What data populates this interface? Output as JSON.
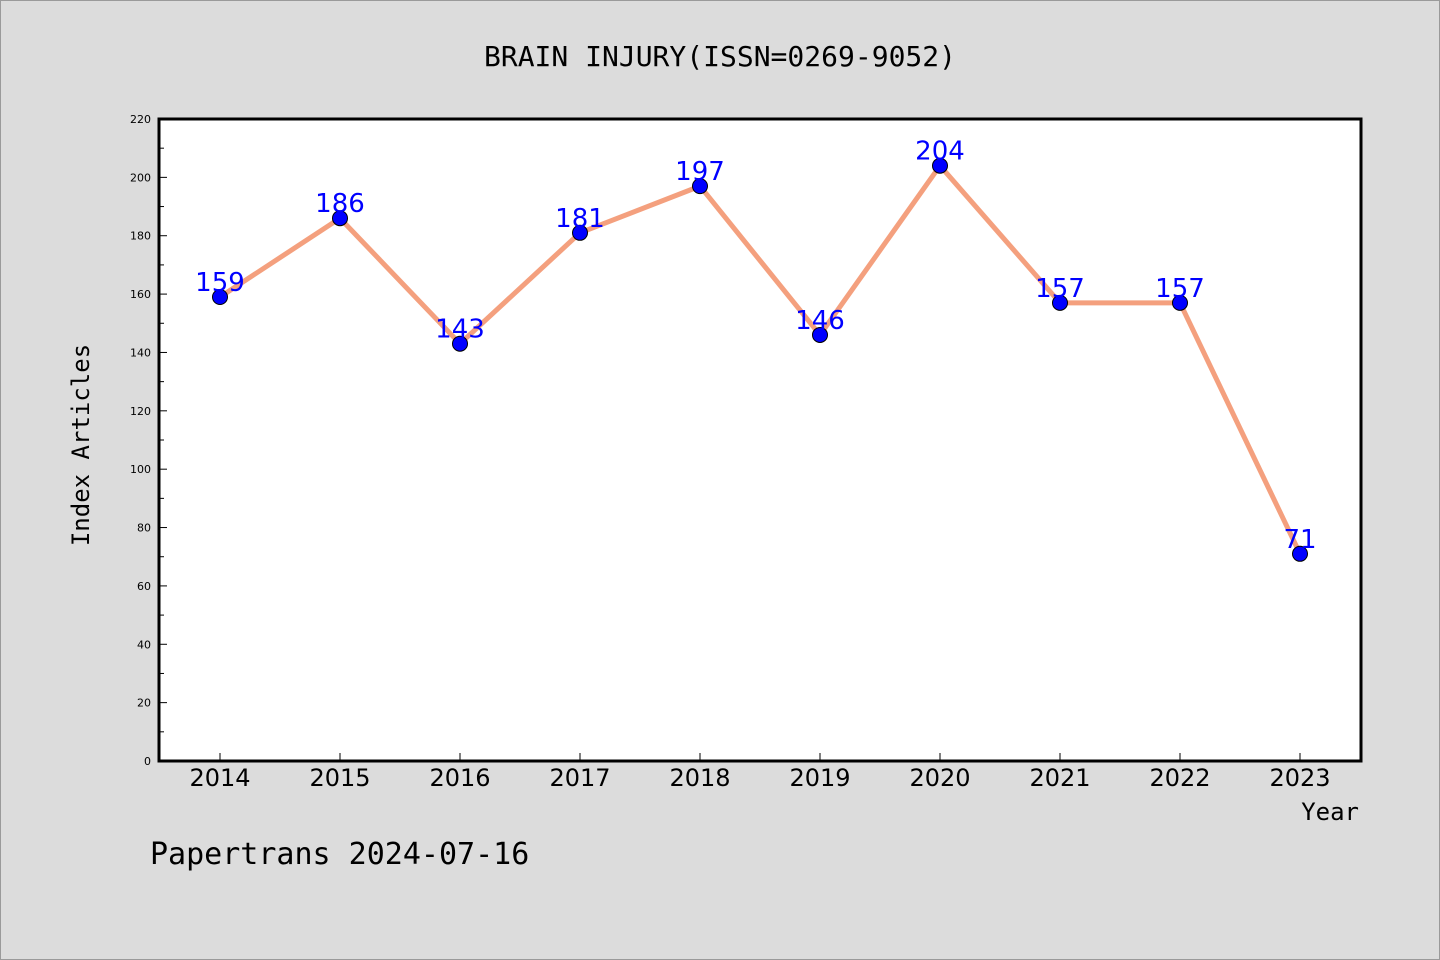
{
  "chart_data": {
    "type": "line",
    "title": "BRAIN INJURY(ISSN=0269-9052)",
    "xlabel": "Year",
    "ylabel": "Index Articles",
    "categories": [
      "2014",
      "2015",
      "2016",
      "2017",
      "2018",
      "2019",
      "2020",
      "2021",
      "2022",
      "2023"
    ],
    "values": [
      159,
      186,
      143,
      181,
      197,
      146,
      204,
      157,
      157,
      71
    ],
    "ylim": [
      0,
      220
    ],
    "yticks": [
      0,
      20,
      40,
      60,
      80,
      100,
      120,
      140,
      160,
      180,
      200,
      220
    ],
    "grid": false,
    "line_color": "#f4a07e",
    "marker_color": "#0000ff",
    "label_color": "#0000ff"
  },
  "footer": {
    "watermark": "Papertrans 2024-07-16"
  }
}
